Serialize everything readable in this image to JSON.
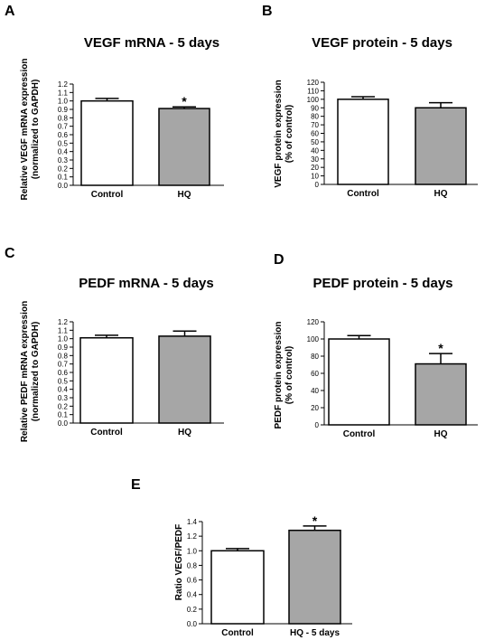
{
  "chart_data": [
    {
      "panel": "A",
      "type": "bar",
      "title": "VEGF mRNA - 5 days",
      "ylabel": [
        "Relative VEGF mRNA expression",
        "(normalized to GAPDH)"
      ],
      "categories": [
        "Control",
        "HQ"
      ],
      "values": [
        1.0,
        0.91
      ],
      "errors": [
        0.03,
        0.02
      ],
      "significant": [
        false,
        true
      ],
      "fills": [
        "#ffffff",
        "#a6a6a6"
      ],
      "ylim": [
        0,
        1.2
      ],
      "yticks": [
        "0.0",
        "0.1",
        "0.2",
        "0.3",
        "0.4",
        "0.5",
        "0.6",
        "0.7",
        "0.8",
        "0.9",
        "1.0",
        "1.1",
        "1.2"
      ],
      "ytick_values": [
        0,
        0.1,
        0.2,
        0.3,
        0.4,
        0.5,
        0.6,
        0.7,
        0.8,
        0.9,
        1.0,
        1.1,
        1.2
      ],
      "marker": "*"
    },
    {
      "panel": "B",
      "type": "bar",
      "title": "VEGF protein - 5 days",
      "ylabel": [
        "VEGF protein expression",
        "(% of control)"
      ],
      "categories": [
        "Control",
        "HQ"
      ],
      "values": [
        100,
        90
      ],
      "errors": [
        3,
        6
      ],
      "significant": [
        false,
        false
      ],
      "fills": [
        "#ffffff",
        "#a6a6a6"
      ],
      "ylim": [
        0,
        120
      ],
      "yticks": [
        "0",
        "10",
        "20",
        "30",
        "40",
        "50",
        "60",
        "70",
        "80",
        "90",
        "100",
        "110",
        "120"
      ],
      "ytick_values": [
        0,
        10,
        20,
        30,
        40,
        50,
        60,
        70,
        80,
        90,
        100,
        110,
        120
      ],
      "marker": "*"
    },
    {
      "panel": "C",
      "type": "bar",
      "title": "PEDF mRNA - 5 days",
      "ylabel": [
        "Relative PEDF mRNA expression",
        "(normalized to GAPDH)"
      ],
      "categories": [
        "Control",
        "HQ"
      ],
      "values": [
        1.01,
        1.03
      ],
      "errors": [
        0.03,
        0.06
      ],
      "significant": [
        false,
        false
      ],
      "fills": [
        "#ffffff",
        "#a6a6a6"
      ],
      "ylim": [
        0,
        1.2
      ],
      "yticks": [
        "0.0",
        "0.1",
        "0.2",
        "0.3",
        "0.4",
        "0.5",
        "0.6",
        "0.7",
        "0.8",
        "0.9",
        "1.0",
        "1.1",
        "1.2"
      ],
      "ytick_values": [
        0,
        0.1,
        0.2,
        0.3,
        0.4,
        0.5,
        0.6,
        0.7,
        0.8,
        0.9,
        1.0,
        1.1,
        1.2
      ],
      "marker": "*"
    },
    {
      "panel": "D",
      "type": "bar",
      "title": "PEDF protein - 5 days",
      "ylabel": [
        "PEDF protein expression",
        "(% of control)"
      ],
      "categories": [
        "Control",
        "HQ"
      ],
      "values": [
        100,
        71
      ],
      "errors": [
        4,
        12
      ],
      "significant": [
        false,
        true
      ],
      "fills": [
        "#ffffff",
        "#a6a6a6"
      ],
      "ylim": [
        0,
        120
      ],
      "yticks": [
        "0",
        "20",
        "40",
        "60",
        "80",
        "100",
        "120"
      ],
      "ytick_values": [
        0,
        20,
        40,
        60,
        80,
        100,
        120
      ],
      "marker": "*"
    },
    {
      "panel": "E",
      "type": "bar",
      "title": "",
      "ylabel": [
        "Ratio VEGF/PEDF"
      ],
      "categories": [
        "Control",
        "HQ - 5 days"
      ],
      "values": [
        1.0,
        1.28
      ],
      "errors": [
        0.03,
        0.06
      ],
      "significant": [
        false,
        true
      ],
      "fills": [
        "#ffffff",
        "#a6a6a6"
      ],
      "ylim": [
        0,
        1.4
      ],
      "yticks": [
        "0.0",
        "0.2",
        "0.4",
        "0.6",
        "0.8",
        "1.0",
        "1.2",
        "1.4"
      ],
      "ytick_values": [
        0,
        0.2,
        0.4,
        0.6,
        0.8,
        1.0,
        1.2,
        1.4
      ],
      "marker": "*"
    }
  ]
}
